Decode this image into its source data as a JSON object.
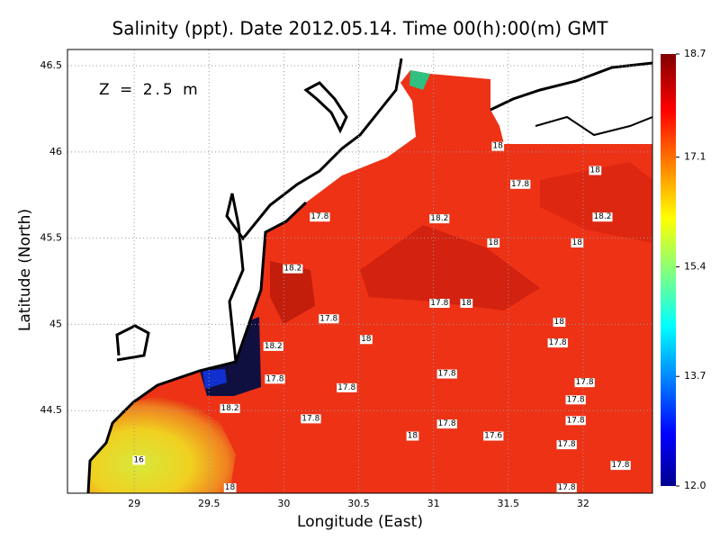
{
  "chart_data": {
    "type": "contour",
    "title": "Salinity (ppt). Date 2012.05.14. Time 00(h):00(m) GMT",
    "xlabel": "Longitude (East)",
    "ylabel": "Latitude (North)",
    "annotation": "Z = 2.5 m",
    "xlim": [
      28.554,
      32.464
    ],
    "ylim": [
      44.021,
      46.594
    ],
    "xticks": [
      29,
      29.5,
      30,
      30.5,
      31,
      31.5,
      32
    ],
    "yticks": [
      44.5,
      45,
      45.5,
      46,
      46.5
    ],
    "grid": true,
    "colorbar": {
      "lim": [
        12,
        18.7
      ],
      "ticks": [
        {
          "value": 12,
          "label": "12.0"
        },
        13.7,
        15.4,
        17.1,
        18.7
      ]
    },
    "contour_labels": [
      {
        "value": 18,
        "lon": 31.43,
        "lat": 46.04
      },
      {
        "value": 18,
        "lon": 32.08,
        "lat": 45.9
      },
      {
        "value": 17.8,
        "lon": 31.58,
        "lat": 45.82
      },
      {
        "value": 17.8,
        "lon": 30.24,
        "lat": 45.63
      },
      {
        "value": 18.2,
        "lon": 31.04,
        "lat": 45.62
      },
      {
        "value": 18.2,
        "lon": 32.13,
        "lat": 45.63
      },
      {
        "value": 18,
        "lon": 31.4,
        "lat": 45.48
      },
      {
        "value": 18,
        "lon": 31.96,
        "lat": 45.48
      },
      {
        "value": 18.2,
        "lon": 30.06,
        "lat": 45.33
      },
      {
        "value": 17.8,
        "lon": 31.04,
        "lat": 45.13
      },
      {
        "value": 18,
        "lon": 31.22,
        "lat": 45.13
      },
      {
        "value": 17.8,
        "lon": 30.3,
        "lat": 45.04
      },
      {
        "value": 18,
        "lon": 31.84,
        "lat": 45.02
      },
      {
        "value": 18,
        "lon": 30.55,
        "lat": 44.92
      },
      {
        "value": 17.8,
        "lon": 31.83,
        "lat": 44.9
      },
      {
        "value": 18.2,
        "lon": 29.93,
        "lat": 44.88
      },
      {
        "value": 17.8,
        "lon": 29.94,
        "lat": 44.69
      },
      {
        "value": 17.8,
        "lon": 31.09,
        "lat": 44.72
      },
      {
        "value": 17.8,
        "lon": 30.42,
        "lat": 44.64
      },
      {
        "value": 17.8,
        "lon": 32.01,
        "lat": 44.67
      },
      {
        "value": 17.8,
        "lon": 31.95,
        "lat": 44.57
      },
      {
        "value": 18.2,
        "lon": 29.64,
        "lat": 44.52
      },
      {
        "value": 17.8,
        "lon": 30.18,
        "lat": 44.46
      },
      {
        "value": 17.8,
        "lon": 31.95,
        "lat": 44.45
      },
      {
        "value": 17.8,
        "lon": 31.09,
        "lat": 44.43
      },
      {
        "value": 18,
        "lon": 30.86,
        "lat": 44.36
      },
      {
        "value": 17.6,
        "lon": 31.4,
        "lat": 44.36
      },
      {
        "value": 17.8,
        "lon": 31.89,
        "lat": 44.31
      },
      {
        "value": 16,
        "lon": 29.03,
        "lat": 44.22
      },
      {
        "value": 17.8,
        "lon": 32.25,
        "lat": 44.19
      },
      {
        "value": 18,
        "lon": 29.64,
        "lat": 44.06
      },
      {
        "value": 17.8,
        "lon": 31.89,
        "lat": 44.06
      }
    ]
  }
}
